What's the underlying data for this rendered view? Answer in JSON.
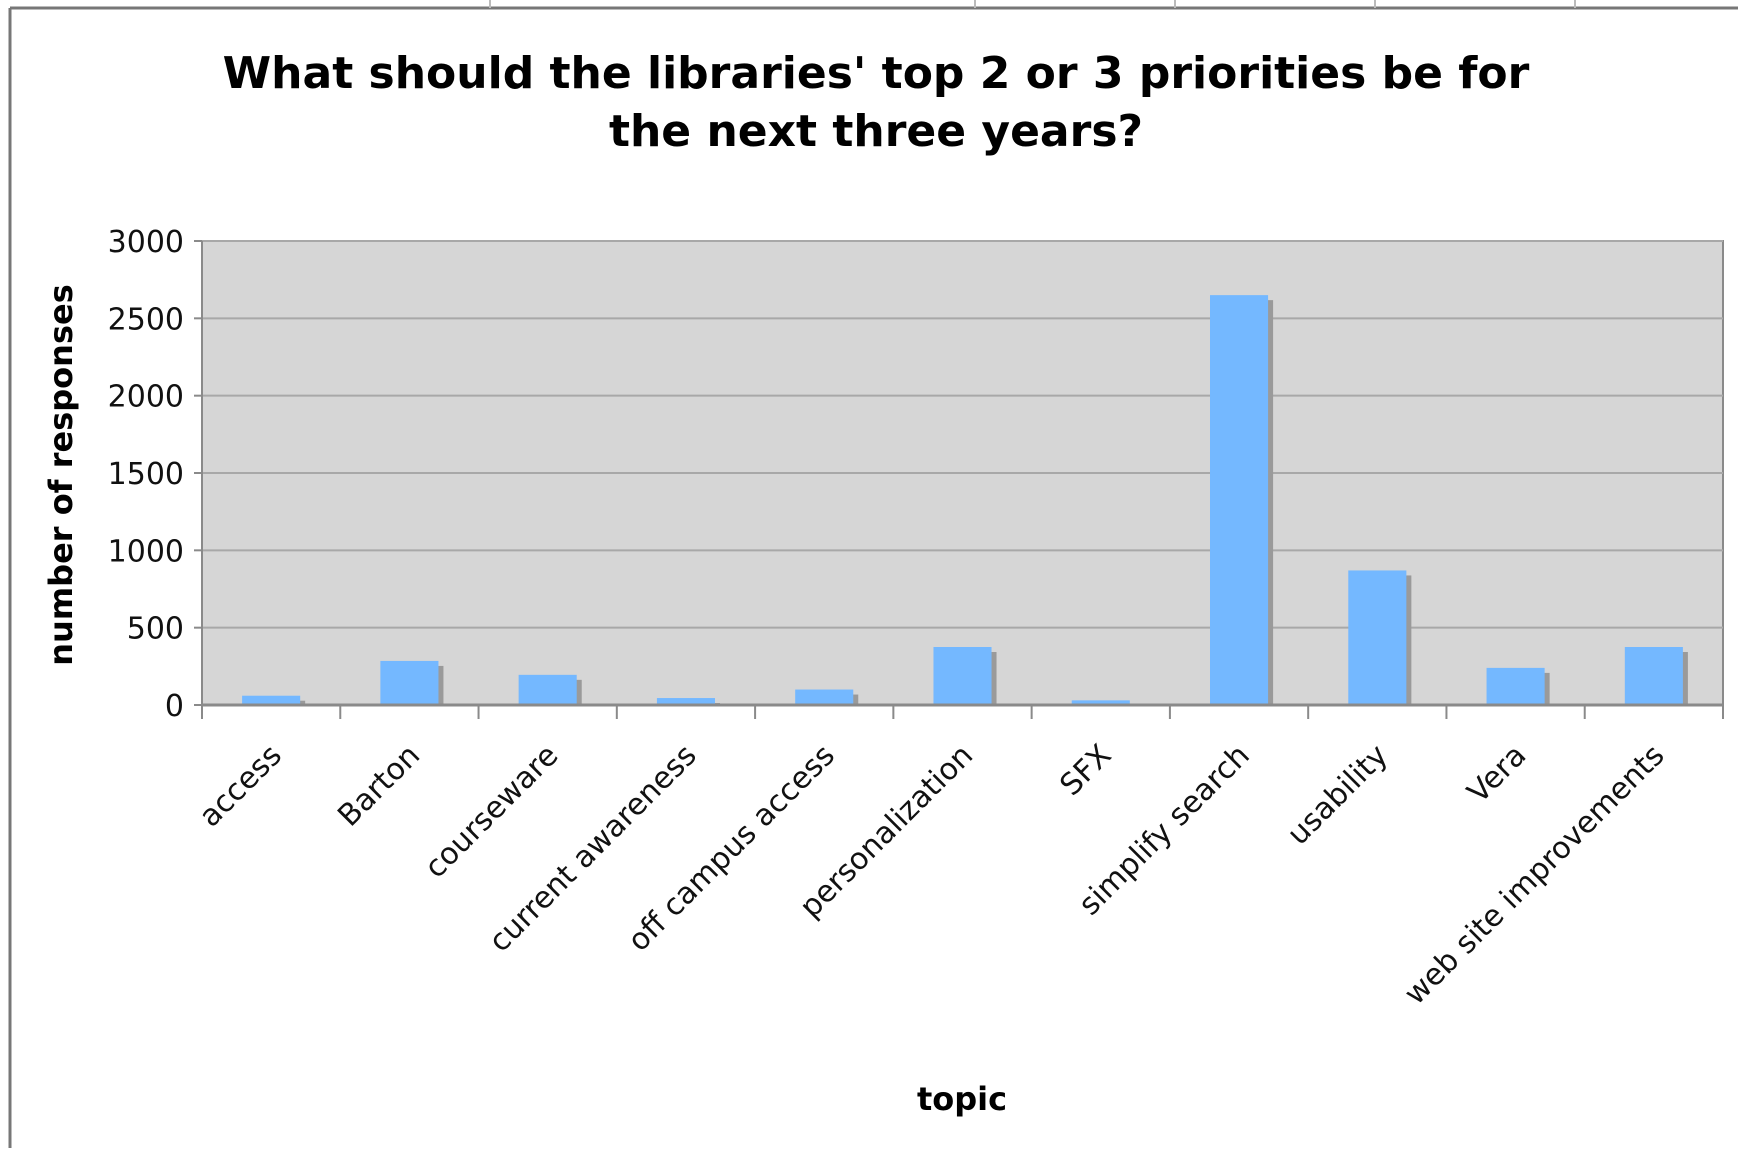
{
  "chart_data": {
    "type": "bar",
    "title_lines": [
      "What should the libraries' top 2 or 3 priorities be for",
      "the next three years?"
    ],
    "xlabel": "topic",
    "ylabel": "number of responses",
    "categories": [
      "access",
      "Barton",
      "courseware",
      "current awareness",
      "off campus access",
      "personalization",
      "SFX",
      "simplify search",
      "usability",
      "Vera",
      "web site improvements"
    ],
    "values": [
      60,
      285,
      195,
      45,
      100,
      375,
      30,
      2650,
      870,
      240,
      375
    ],
    "ylim": [
      0,
      3000
    ],
    "yticks": [
      0,
      500,
      1000,
      1500,
      2000,
      2500,
      3000
    ],
    "grid": true,
    "legend": "none",
    "colors": {
      "bar": "#74b8ff",
      "bar_shadow": "#9a9a9a",
      "plot_bg": "#d6d6d6",
      "grid": "#a8a8a8",
      "axis": "#8a8a8a"
    }
  }
}
